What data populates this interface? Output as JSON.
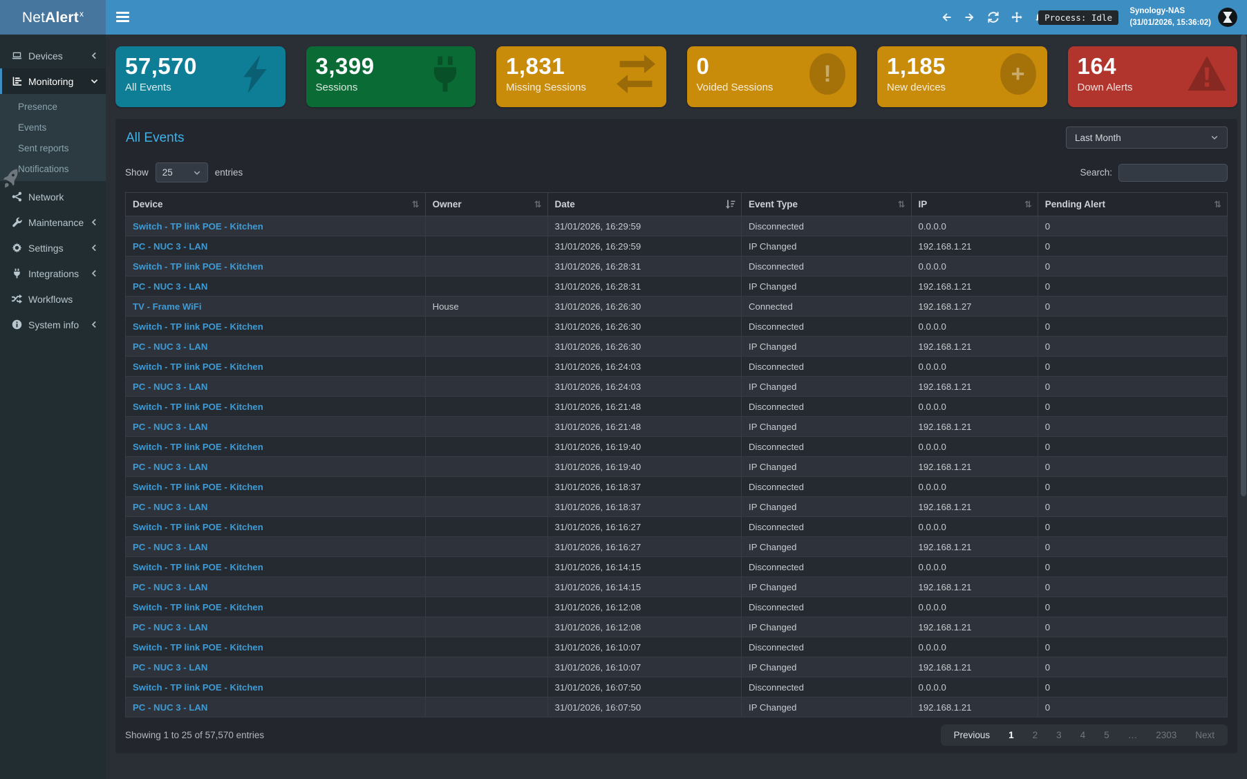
{
  "app": {
    "brand_prefix": "Net",
    "brand_bold": "Alert",
    "brand_sup": "x"
  },
  "topbar": {
    "process_badge": "Process: Idle",
    "host_name": "Synology-NAS",
    "host_time": "(31/01/2026, 15:36:02)",
    "nav_icons": [
      "arrow-left-icon",
      "arrow-right-icon",
      "refresh-icon",
      "move-icon",
      "bell-icon"
    ]
  },
  "sidebar": {
    "items": [
      {
        "label": "Devices",
        "icon": "laptop-icon",
        "chevron": "left"
      },
      {
        "label": "Monitoring",
        "icon": "monitoring-icon",
        "chevron": "down",
        "active": true
      },
      {
        "label": "Presence",
        "sub": true
      },
      {
        "label": "Events",
        "sub": true
      },
      {
        "label": "Sent reports",
        "sub": true
      },
      {
        "label": "Notifications",
        "sub": true
      },
      {
        "label": "Network",
        "icon": "network-icon"
      },
      {
        "label": "Maintenance",
        "icon": "wrench-icon",
        "chevron": "left"
      },
      {
        "label": "Settings",
        "icon": "gear-icon",
        "chevron": "left"
      },
      {
        "label": "Integrations",
        "icon": "plug-icon",
        "chevron": "left"
      },
      {
        "label": "Workflows",
        "icon": "shuffle-icon"
      },
      {
        "label": "System info",
        "icon": "info-icon",
        "chevron": "left"
      }
    ]
  },
  "cards": [
    {
      "value": "57,570",
      "label": "All Events",
      "color": "#0e7e96",
      "icon": "bolt-icon"
    },
    {
      "value": "3,399",
      "label": "Sessions",
      "color": "#0b6b35",
      "icon": "plug-icon"
    },
    {
      "value": "1,831",
      "label": "Missing Sessions",
      "color": "#c98c0a",
      "icon": "exchange-icon"
    },
    {
      "value": "0",
      "label": "Voided Sessions",
      "color": "#c98c0a",
      "icon": "exclamation-circle-icon",
      "glyph": "!"
    },
    {
      "value": "1,185",
      "label": "New devices",
      "color": "#c98c0a",
      "icon": "plus-circle-icon",
      "glyph": "+"
    },
    {
      "value": "164",
      "label": "Down Alerts",
      "color": "#b2352d",
      "icon": "warning-icon"
    }
  ],
  "panel": {
    "title": "All Events",
    "period_selected": "Last Month",
    "show_label": "Show",
    "entries_selected": "25",
    "entries_label": "entries",
    "search_label": "Search:",
    "search_value": "",
    "footer": "Showing 1 to 25 of 57,570 entries"
  },
  "table": {
    "columns": [
      {
        "label": "Device",
        "sort": "both",
        "width": "27.2%"
      },
      {
        "label": "Owner",
        "sort": "both",
        "width": "11.1%"
      },
      {
        "label": "Date",
        "sort": "desc",
        "width": "17.6%"
      },
      {
        "label": "Event Type",
        "sort": "both",
        "width": "15.4%"
      },
      {
        "label": "IP",
        "sort": "both",
        "width": "11.5%"
      },
      {
        "label": "Pending Alert",
        "sort": "both",
        "width": "17.2%"
      }
    ],
    "rows": [
      [
        "Switch - TP link POE - Kitchen",
        "",
        "31/01/2026, 16:29:59",
        "Disconnected",
        "0.0.0.0",
        "0"
      ],
      [
        "PC - NUC 3 - LAN",
        "",
        "31/01/2026, 16:29:59",
        "IP Changed",
        "192.168.1.21",
        "0"
      ],
      [
        "Switch - TP link POE - Kitchen",
        "",
        "31/01/2026, 16:28:31",
        "Disconnected",
        "0.0.0.0",
        "0"
      ],
      [
        "PC - NUC 3 - LAN",
        "",
        "31/01/2026, 16:28:31",
        "IP Changed",
        "192.168.1.21",
        "0"
      ],
      [
        "TV - Frame WiFi",
        "House",
        "31/01/2026, 16:26:30",
        "Connected",
        "192.168.1.27",
        "0"
      ],
      [
        "Switch - TP link POE - Kitchen",
        "",
        "31/01/2026, 16:26:30",
        "Disconnected",
        "0.0.0.0",
        "0"
      ],
      [
        "PC - NUC 3 - LAN",
        "",
        "31/01/2026, 16:26:30",
        "IP Changed",
        "192.168.1.21",
        "0"
      ],
      [
        "Switch - TP link POE - Kitchen",
        "",
        "31/01/2026, 16:24:03",
        "Disconnected",
        "0.0.0.0",
        "0"
      ],
      [
        "PC - NUC 3 - LAN",
        "",
        "31/01/2026, 16:24:03",
        "IP Changed",
        "192.168.1.21",
        "0"
      ],
      [
        "Switch - TP link POE - Kitchen",
        "",
        "31/01/2026, 16:21:48",
        "Disconnected",
        "0.0.0.0",
        "0"
      ],
      [
        "PC - NUC 3 - LAN",
        "",
        "31/01/2026, 16:21:48",
        "IP Changed",
        "192.168.1.21",
        "0"
      ],
      [
        "Switch - TP link POE - Kitchen",
        "",
        "31/01/2026, 16:19:40",
        "Disconnected",
        "0.0.0.0",
        "0"
      ],
      [
        "PC - NUC 3 - LAN",
        "",
        "31/01/2026, 16:19:40",
        "IP Changed",
        "192.168.1.21",
        "0"
      ],
      [
        "Switch - TP link POE - Kitchen",
        "",
        "31/01/2026, 16:18:37",
        "Disconnected",
        "0.0.0.0",
        "0"
      ],
      [
        "PC - NUC 3 - LAN",
        "",
        "31/01/2026, 16:18:37",
        "IP Changed",
        "192.168.1.21",
        "0"
      ],
      [
        "Switch - TP link POE - Kitchen",
        "",
        "31/01/2026, 16:16:27",
        "Disconnected",
        "0.0.0.0",
        "0"
      ],
      [
        "PC - NUC 3 - LAN",
        "",
        "31/01/2026, 16:16:27",
        "IP Changed",
        "192.168.1.21",
        "0"
      ],
      [
        "Switch - TP link POE - Kitchen",
        "",
        "31/01/2026, 16:14:15",
        "Disconnected",
        "0.0.0.0",
        "0"
      ],
      [
        "PC - NUC 3 - LAN",
        "",
        "31/01/2026, 16:14:15",
        "IP Changed",
        "192.168.1.21",
        "0"
      ],
      [
        "Switch - TP link POE - Kitchen",
        "",
        "31/01/2026, 16:12:08",
        "Disconnected",
        "0.0.0.0",
        "0"
      ],
      [
        "PC - NUC 3 - LAN",
        "",
        "31/01/2026, 16:12:08",
        "IP Changed",
        "192.168.1.21",
        "0"
      ],
      [
        "Switch - TP link POE - Kitchen",
        "",
        "31/01/2026, 16:10:07",
        "Disconnected",
        "0.0.0.0",
        "0"
      ],
      [
        "PC - NUC 3 - LAN",
        "",
        "31/01/2026, 16:10:07",
        "IP Changed",
        "192.168.1.21",
        "0"
      ],
      [
        "Switch - TP link POE - Kitchen",
        "",
        "31/01/2026, 16:07:50",
        "Disconnected",
        "0.0.0.0",
        "0"
      ],
      [
        "PC - NUC 3 - LAN",
        "",
        "31/01/2026, 16:07:50",
        "IP Changed",
        "192.168.1.21",
        "0"
      ]
    ]
  },
  "pagination": {
    "previous": "Previous",
    "pages": [
      "1",
      "2",
      "3",
      "4",
      "5",
      "…",
      "2303"
    ],
    "active": "1",
    "next": "Next"
  }
}
